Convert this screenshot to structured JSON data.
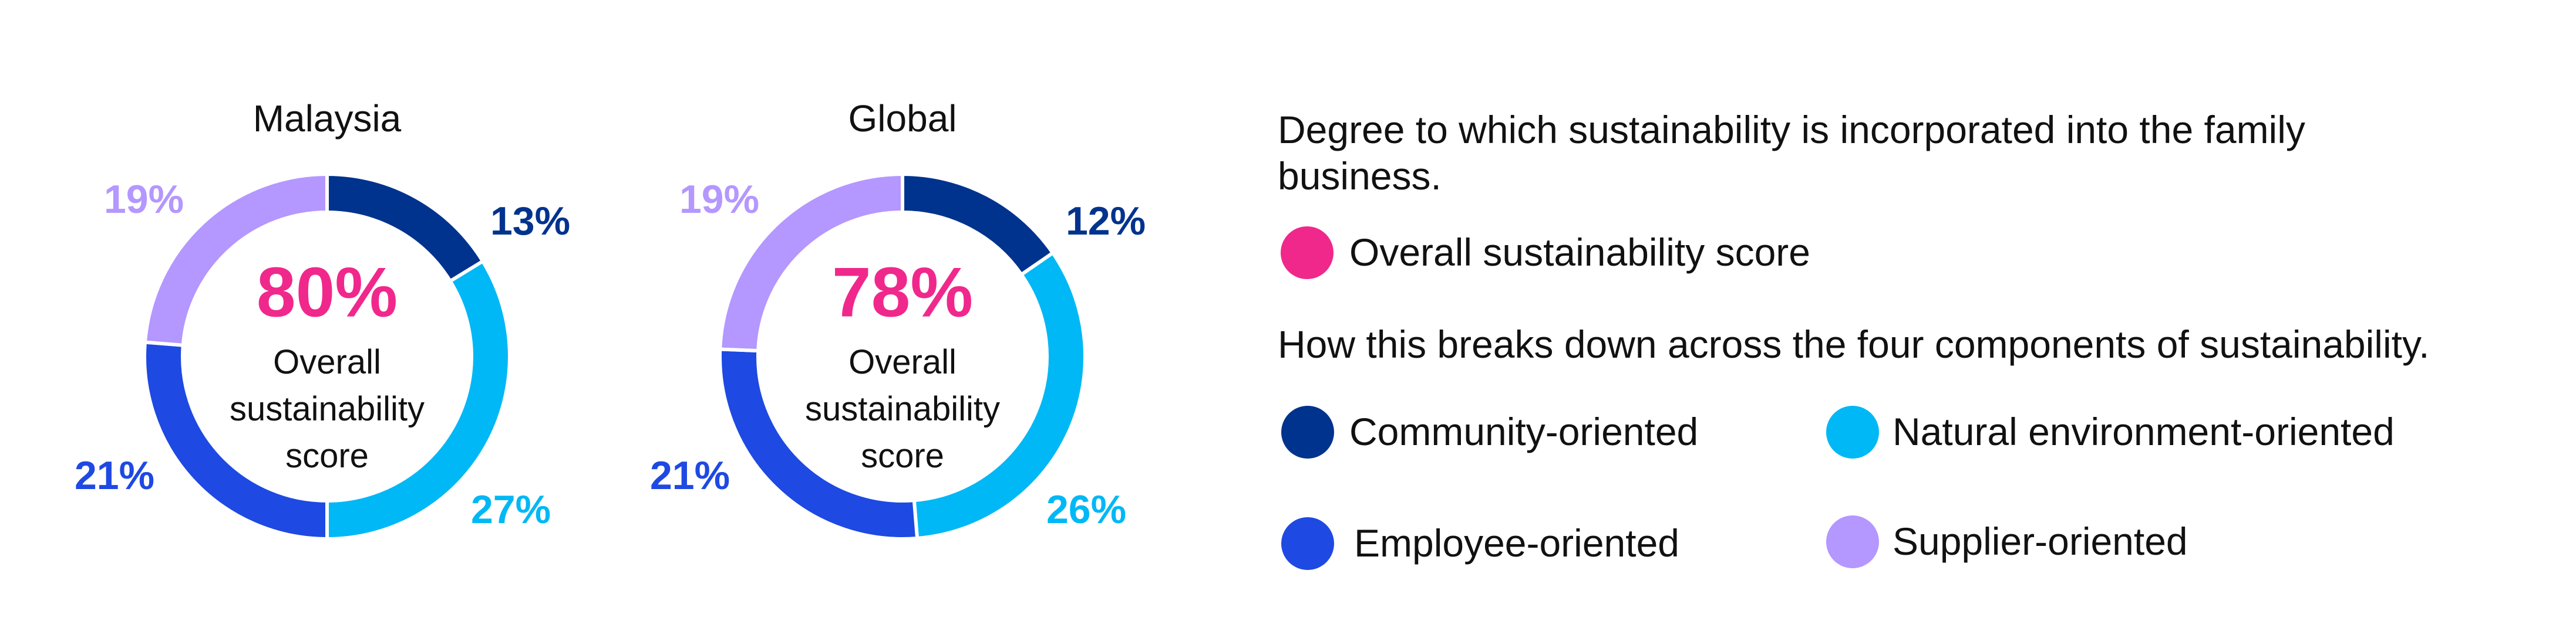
{
  "chart_data": [
    {
      "type": "donut",
      "title": "Malaysia",
      "categories": [
        "Community-oriented",
        "Natural environment-oriented",
        "Employee-oriented",
        "Supplier-oriented"
      ],
      "values": [
        13,
        27,
        21,
        19
      ],
      "value_labels": [
        "13%",
        "27%",
        "21%",
        "19%"
      ],
      "colors": [
        "#00338d",
        "#00b8f5",
        "#1e49e2",
        "#b497ff"
      ],
      "center_value": 80,
      "center_value_label": "80%",
      "center_text": "Overall sustainability score"
    },
    {
      "type": "donut",
      "title": "Global",
      "categories": [
        "Community-oriented",
        "Natural environment-oriented",
        "Employee-oriented",
        "Supplier-oriented"
      ],
      "values": [
        12,
        26,
        21,
        19
      ],
      "value_labels": [
        "12%",
        "26%",
        "21%",
        "19%"
      ],
      "colors": [
        "#00338d",
        "#00b8f5",
        "#1e49e2",
        "#b497ff"
      ],
      "center_value": 78,
      "center_value_label": "78%",
      "center_text": "Overall sustainability score"
    }
  ],
  "legend": {
    "heading": "Degree to which sustainability is incorporated into the family business.",
    "overall_entry": "Overall sustainability score",
    "overall_color": "#f0288c",
    "breakdown_heading": "How this breaks down across the four components of sustainability."
  }
}
